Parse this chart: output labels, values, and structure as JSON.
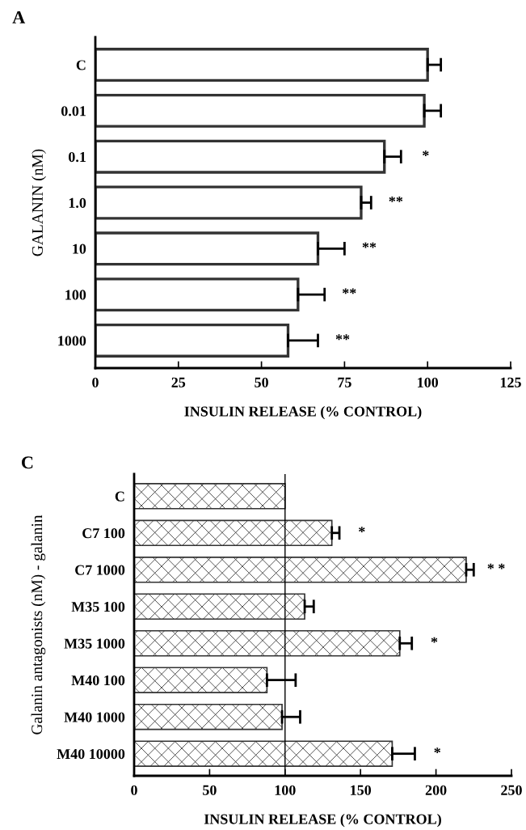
{
  "chart_data": [
    {
      "type": "bar",
      "orientation": "horizontal",
      "title": "A",
      "xlabel": "INSULIN RELEASE (% CONTROL)",
      "ylabel": "GALANIN (nM)",
      "categories": [
        "C",
        "0.01",
        "0.1",
        "1.0",
        "10",
        "100",
        "1000"
      ],
      "values": [
        100,
        99,
        87,
        80,
        67,
        61,
        58
      ],
      "errors": [
        [
          100,
          104
        ],
        [
          99,
          104
        ],
        [
          87,
          92
        ],
        [
          80,
          83
        ],
        [
          67,
          75
        ],
        [
          61,
          69
        ],
        [
          58,
          67
        ]
      ],
      "color": "#333333",
      "xlim": [
        0,
        125
      ],
      "xticks": [
        0,
        25,
        50,
        75,
        100,
        125
      ],
      "grid": false,
      "annotations": [
        {
          "text": "*",
          "x": 92,
          "y": "0.1"
        },
        {
          "text": "**",
          "x": 83,
          "y": "1.0"
        },
        {
          "text": "**",
          "x": 75,
          "y": "10"
        },
        {
          "text": "**",
          "x": 69,
          "y": "100"
        },
        {
          "text": "**",
          "x": 67,
          "y": "1000"
        }
      ]
    },
    {
      "type": "bar",
      "orientation": "horizontal",
      "title": "C",
      "xlabel": "INSULIN RELEASE (% CONTROL)",
      "ylabel": "Galanin antagonists (nM) - galanin",
      "categories": [
        "C",
        "C7 100",
        "C7 1000",
        "M35 100",
        "M35 1000",
        "M40 100",
        "M40 1000",
        "M40 10000"
      ],
      "values": [
        100,
        131,
        220,
        113,
        176,
        88,
        98,
        171
      ],
      "errors": [
        null,
        [
          131,
          136
        ],
        [
          220,
          225
        ],
        [
          113,
          119
        ],
        [
          176,
          184
        ],
        [
          88,
          107
        ],
        [
          98,
          110
        ],
        [
          171,
          186
        ]
      ],
      "color": "#333333",
      "xlim": [
        0,
        250
      ],
      "xticks": [
        0,
        50,
        100,
        150,
        200,
        250
      ],
      "grid": false,
      "ref_lines": [
        {
          "axis": "x",
          "value": 100,
          "color": "#000000"
        }
      ],
      "annotations": [
        {
          "text": "*",
          "x": 136,
          "y": "C7 100"
        },
        {
          "text": "* *",
          "x": 225,
          "y": "C7 1000"
        },
        {
          "text": "*",
          "x": 184,
          "y": "M35 1000"
        },
        {
          "text": "*",
          "x": 186,
          "y": "M40 10000"
        }
      ]
    }
  ]
}
